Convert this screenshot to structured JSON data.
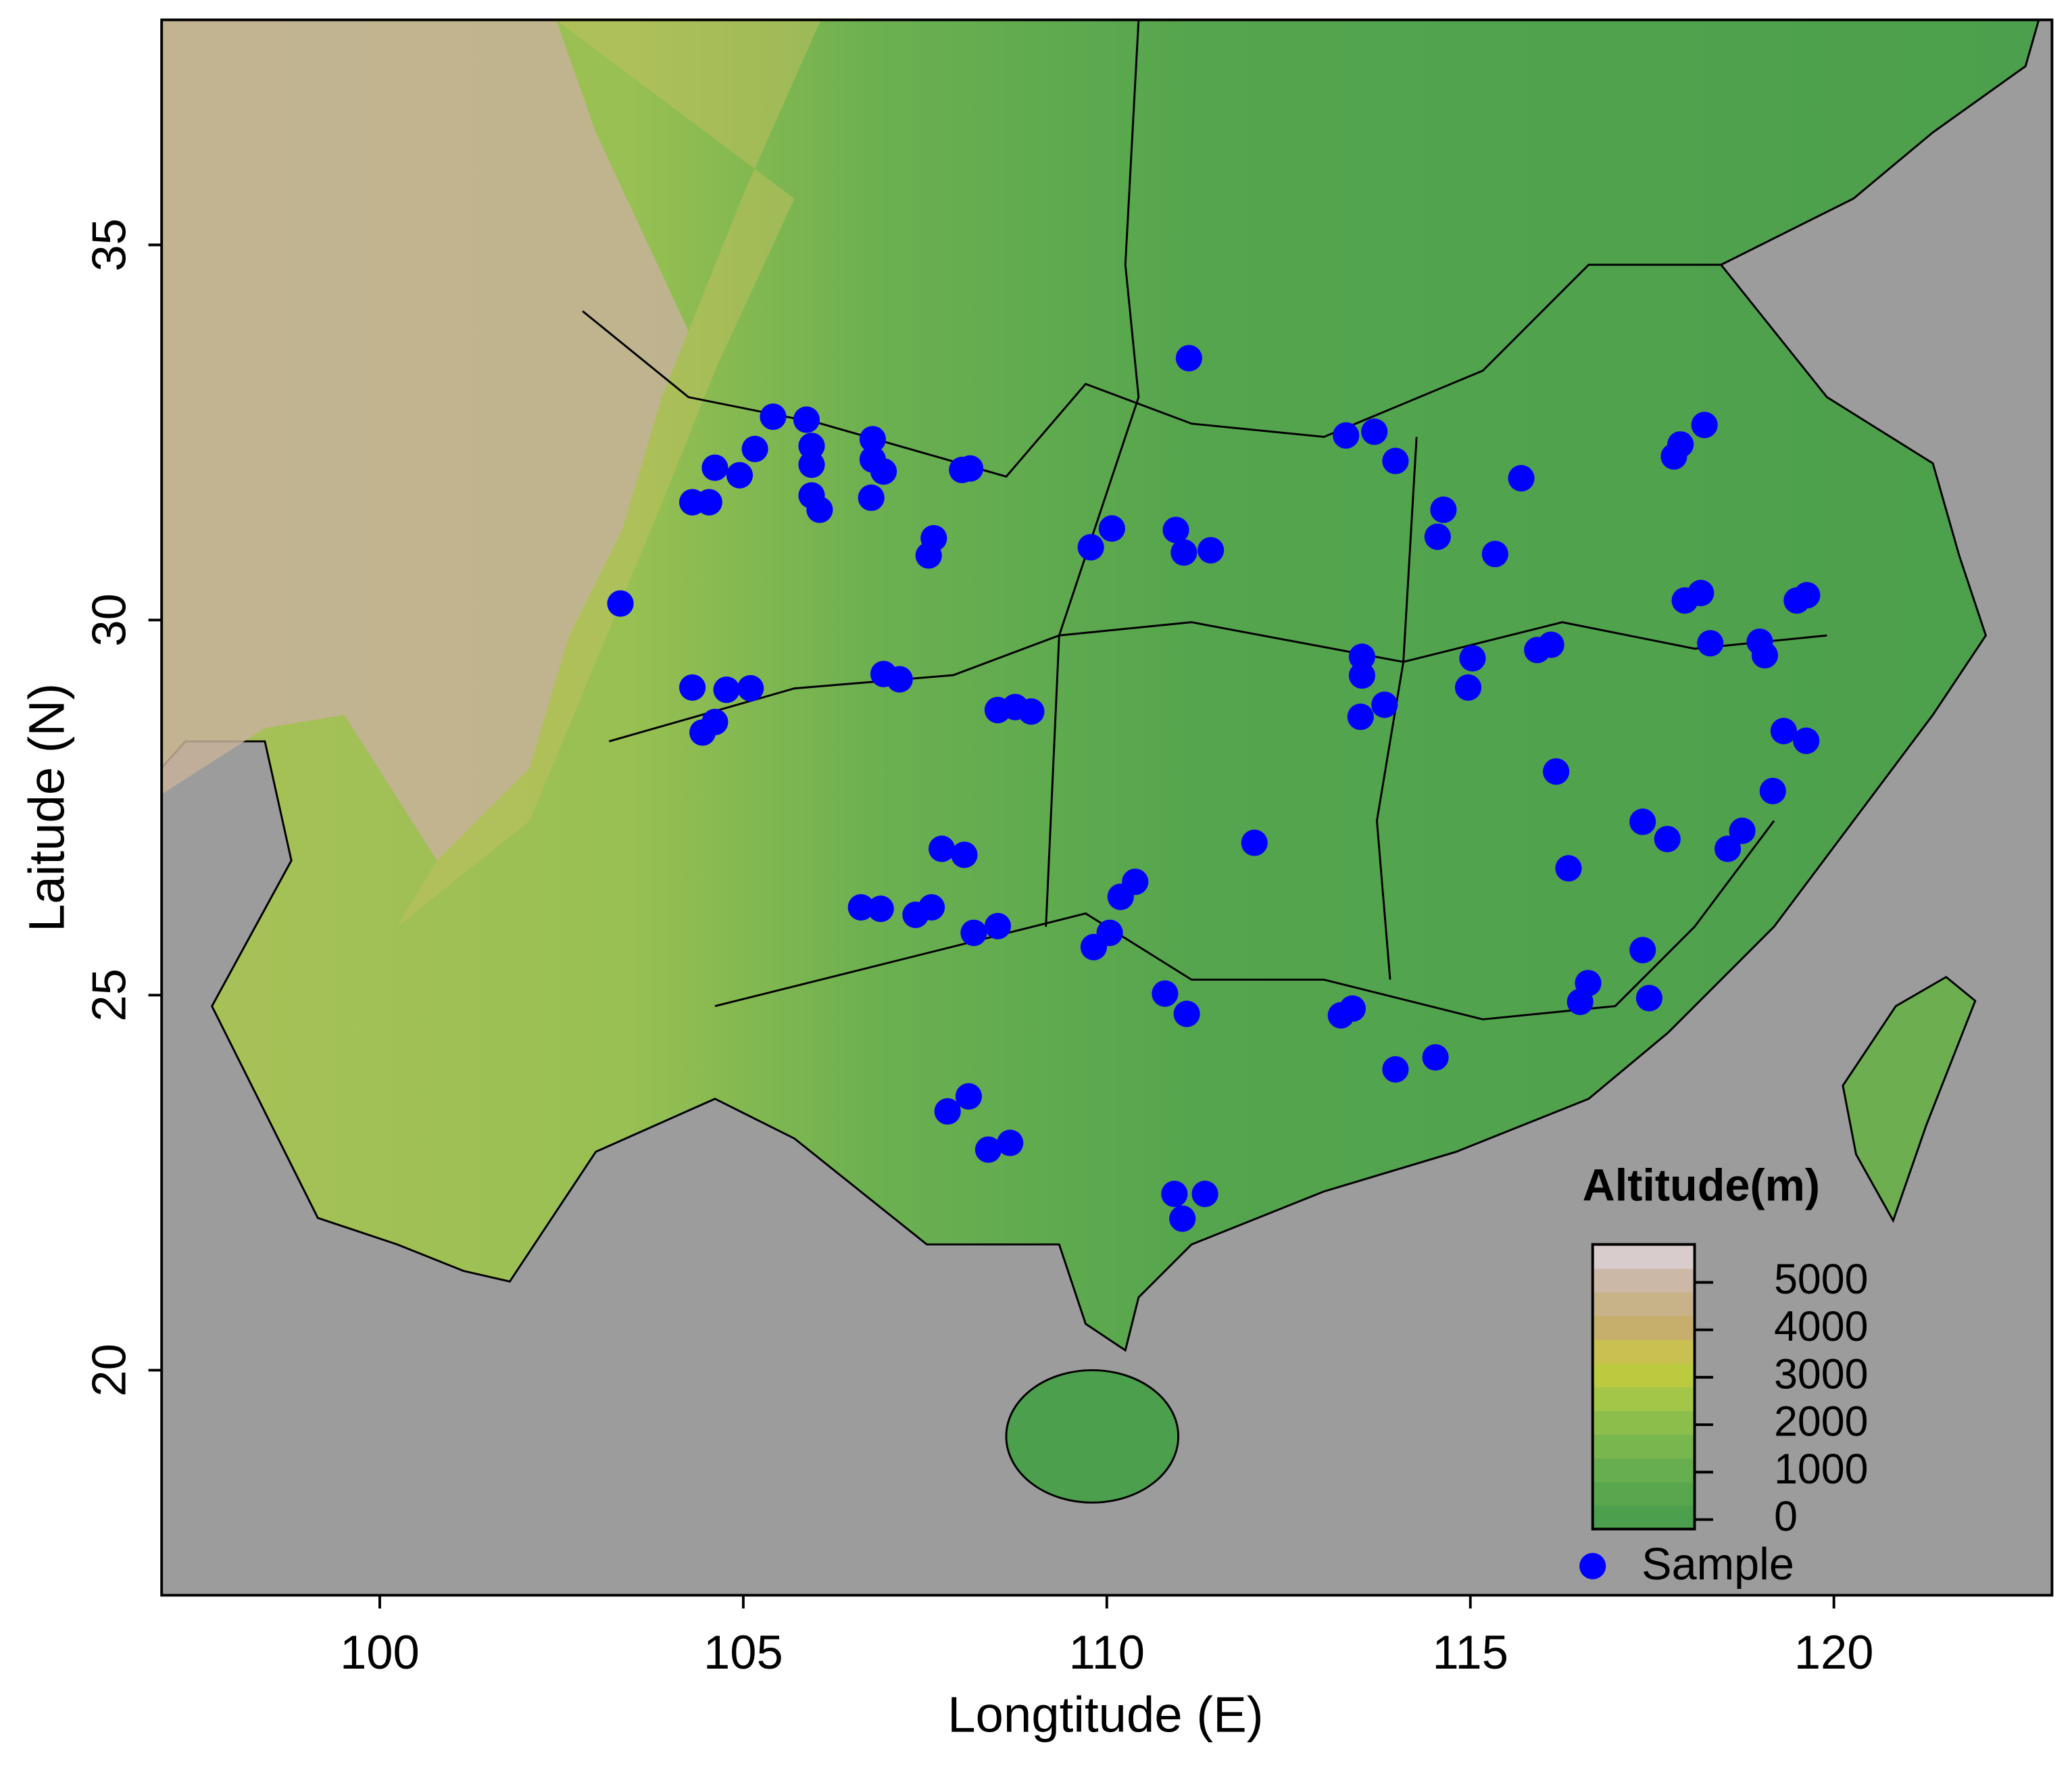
{
  "chart_data": {
    "type": "scatter",
    "x_label": "Longtitude (E)",
    "y_label": "Laitude (N)",
    "xlim": [
      97,
      123
    ],
    "ylim": [
      17,
      38
    ],
    "xticks": [
      100,
      105,
      110,
      115,
      120
    ],
    "yticks": [
      20,
      25,
      30,
      35
    ],
    "series": [
      {
        "name": "Sample",
        "color": "#0000ff",
        "x": [
          111.13,
          103.31,
          104.3,
          104.53,
          104.61,
          104.95,
          105.16,
          105.41,
          105.87,
          105.94,
          105.94,
          105.94,
          106.05,
          106.78,
          106.78,
          106.93,
          106.76,
          108.01,
          108.12,
          107.62,
          107.55,
          104.3,
          104.77,
          105.1,
          104.44,
          104.61,
          106.93,
          107.15,
          108.5,
          108.74,
          108.96,
          107.73,
          108.04,
          106.62,
          106.89,
          107.37,
          107.59,
          108.17,
          108.5,
          109.82,
          110.04,
          110.19,
          110.39,
          110.8,
          111.1,
          107.81,
          108.1,
          108.37,
          108.67,
          110.93,
          111.04,
          111.35,
          109.78,
          110.07,
          110.95,
          111.06,
          111.43,
          112.03,
          113.29,
          113.68,
          113.97,
          114.63,
          114.55,
          115.34,
          115.7,
          113.51,
          113.51,
          113.82,
          113.49,
          115.03,
          114.97,
          115.92,
          116.11,
          116.18,
          116.35,
          117.37,
          117.71,
          116.62,
          116.51,
          117.37,
          117.46,
          113.22,
          113.38,
          113.97,
          114.52,
          117.8,
          117.89,
          118.22,
          117.95,
          118.17,
          118.3,
          118.98,
          119.05,
          119.49,
          119.63,
          119.31,
          119.62,
          119.16,
          118.74,
          118.54
        ],
        "y": [
          33.49,
          30.22,
          31.57,
          31.57,
          32.03,
          31.93,
          32.28,
          32.71,
          32.67,
          32.32,
          32.07,
          31.66,
          31.47,
          32.41,
          32.14,
          31.98,
          31.63,
          32.0,
          32.02,
          31.09,
          30.86,
          29.1,
          29.07,
          29.09,
          28.5,
          28.64,
          29.28,
          29.21,
          28.8,
          28.84,
          28.78,
          26.95,
          26.87,
          26.17,
          26.15,
          26.07,
          26.17,
          25.83,
          25.92,
          25.64,
          25.83,
          26.31,
          26.51,
          25.02,
          24.75,
          23.45,
          23.65,
          22.94,
          23.03,
          22.35,
          22.02,
          22.35,
          30.97,
          31.22,
          31.2,
          30.9,
          30.93,
          27.03,
          32.46,
          32.51,
          32.12,
          31.47,
          31.11,
          30.88,
          31.89,
          29.51,
          29.26,
          28.87,
          28.71,
          29.49,
          29.1,
          29.6,
          29.67,
          27.98,
          26.69,
          27.31,
          27.08,
          25.16,
          24.91,
          25.6,
          24.96,
          24.73,
          24.82,
          24.01,
          24.17,
          32.18,
          32.34,
          32.6,
          30.26,
          30.36,
          29.69,
          29.71,
          29.53,
          30.26,
          30.33,
          28.52,
          28.39,
          27.72,
          27.19,
          26.95
        ]
      }
    ],
    "colorbar": {
      "title": "Altitude(m)",
      "lim": [
        -200,
        5800
      ],
      "ticks": [
        0,
        1000,
        2000,
        3000,
        4000,
        5000
      ],
      "colors": [
        "#4c9f4c",
        "#58a64e",
        "#66ae50",
        "#78b64e",
        "#8cbe4c",
        "#a4c648",
        "#bcca40",
        "#c8c050",
        "#c6ae6c",
        "#c8b288",
        "#ccb8a6",
        "#d8cccc"
      ]
    }
  }
}
